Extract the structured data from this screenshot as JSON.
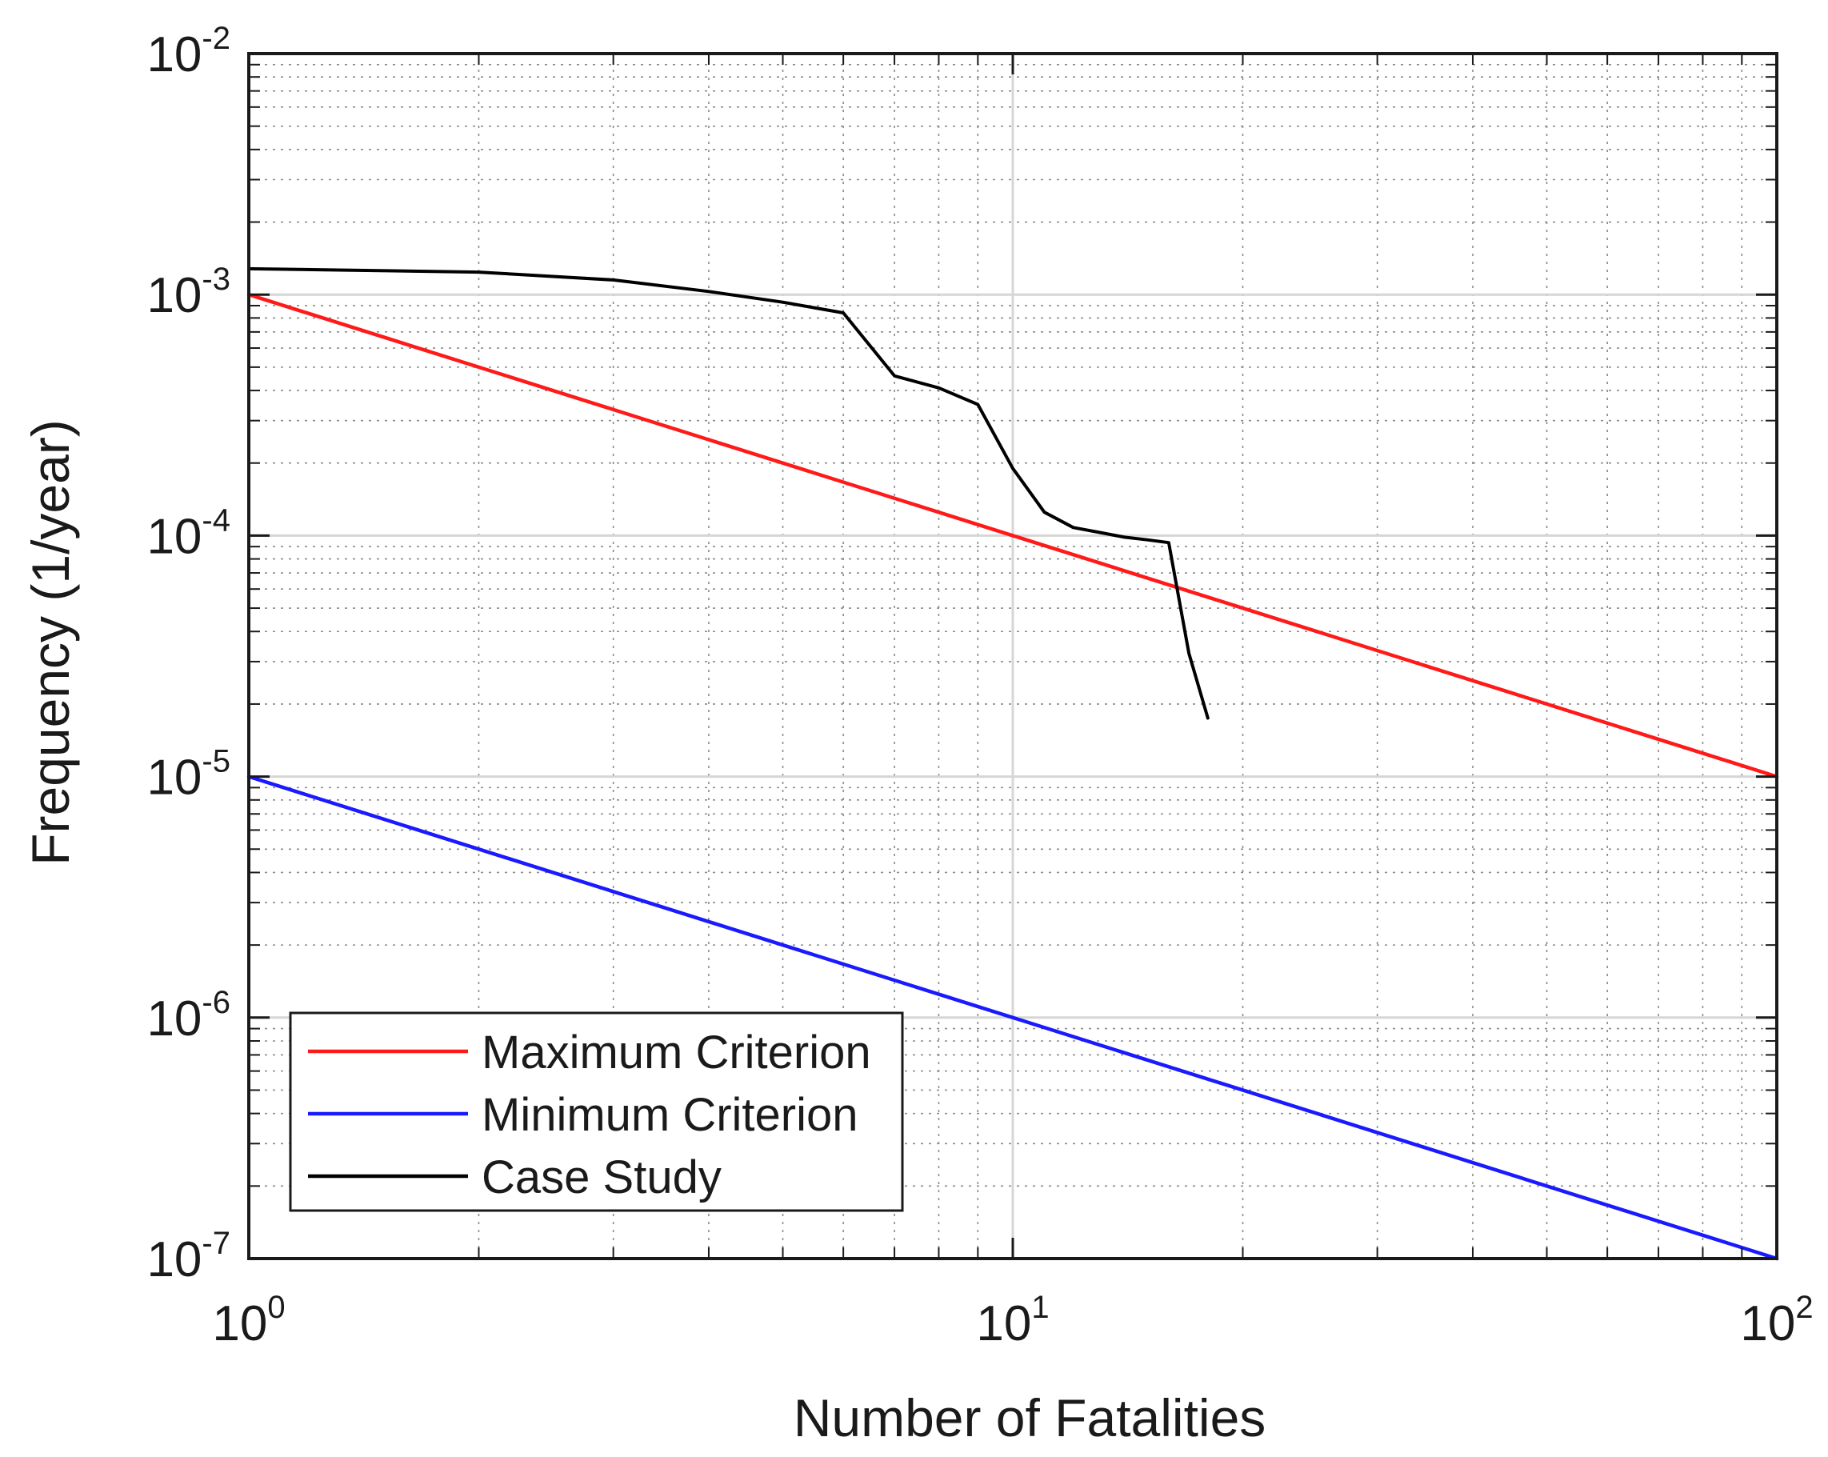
{
  "chart_data": {
    "type": "line",
    "title": "",
    "xlabel": "Number of Fatalities",
    "ylabel": "Frequency (1/year)",
    "xscale": "log",
    "yscale": "log",
    "xlim": [
      1,
      100
    ],
    "ylim": [
      1e-07,
      0.01
    ],
    "grid": true,
    "minor_grid": true,
    "legend_position": "bottom-left",
    "x_ticks": [
      {
        "value": 1,
        "base": "10",
        "exp": "0"
      },
      {
        "value": 10,
        "base": "10",
        "exp": "1"
      },
      {
        "value": 100,
        "base": "10",
        "exp": "2"
      }
    ],
    "y_ticks": [
      {
        "value": 1e-07,
        "base": "10",
        "exp": "-7"
      },
      {
        "value": 1e-06,
        "base": "10",
        "exp": "-6"
      },
      {
        "value": 1e-05,
        "base": "10",
        "exp": "-5"
      },
      {
        "value": 0.0001,
        "base": "10",
        "exp": "-4"
      },
      {
        "value": 0.001,
        "base": "10",
        "exp": "-3"
      },
      {
        "value": 0.01,
        "base": "10",
        "exp": "-2"
      }
    ],
    "series": [
      {
        "name": "Maximum Criterion",
        "color": "#ff1a1a",
        "x": [
          1,
          100
        ],
        "y": [
          0.001,
          1e-05
        ]
      },
      {
        "name": "Minimum Criterion",
        "color": "#1a1aff",
        "x": [
          1,
          100
        ],
        "y": [
          1e-05,
          1e-07
        ]
      },
      {
        "name": "Case Study",
        "color": "#000000",
        "x": [
          1,
          2,
          3,
          4,
          5,
          6,
          7,
          8,
          9,
          10,
          11,
          12,
          13,
          14,
          15,
          16,
          17,
          18
        ],
        "y": [
          0.00128,
          0.00124,
          0.00115,
          0.00103,
          0.00093,
          0.00084,
          0.00046,
          0.00041,
          0.00035,
          0.00019,
          0.000125,
          0.000108,
          0.000103,
          9.85e-05,
          9.6e-05,
          9.35e-05,
          3.25e-05,
          1.75e-05
        ]
      }
    ]
  }
}
